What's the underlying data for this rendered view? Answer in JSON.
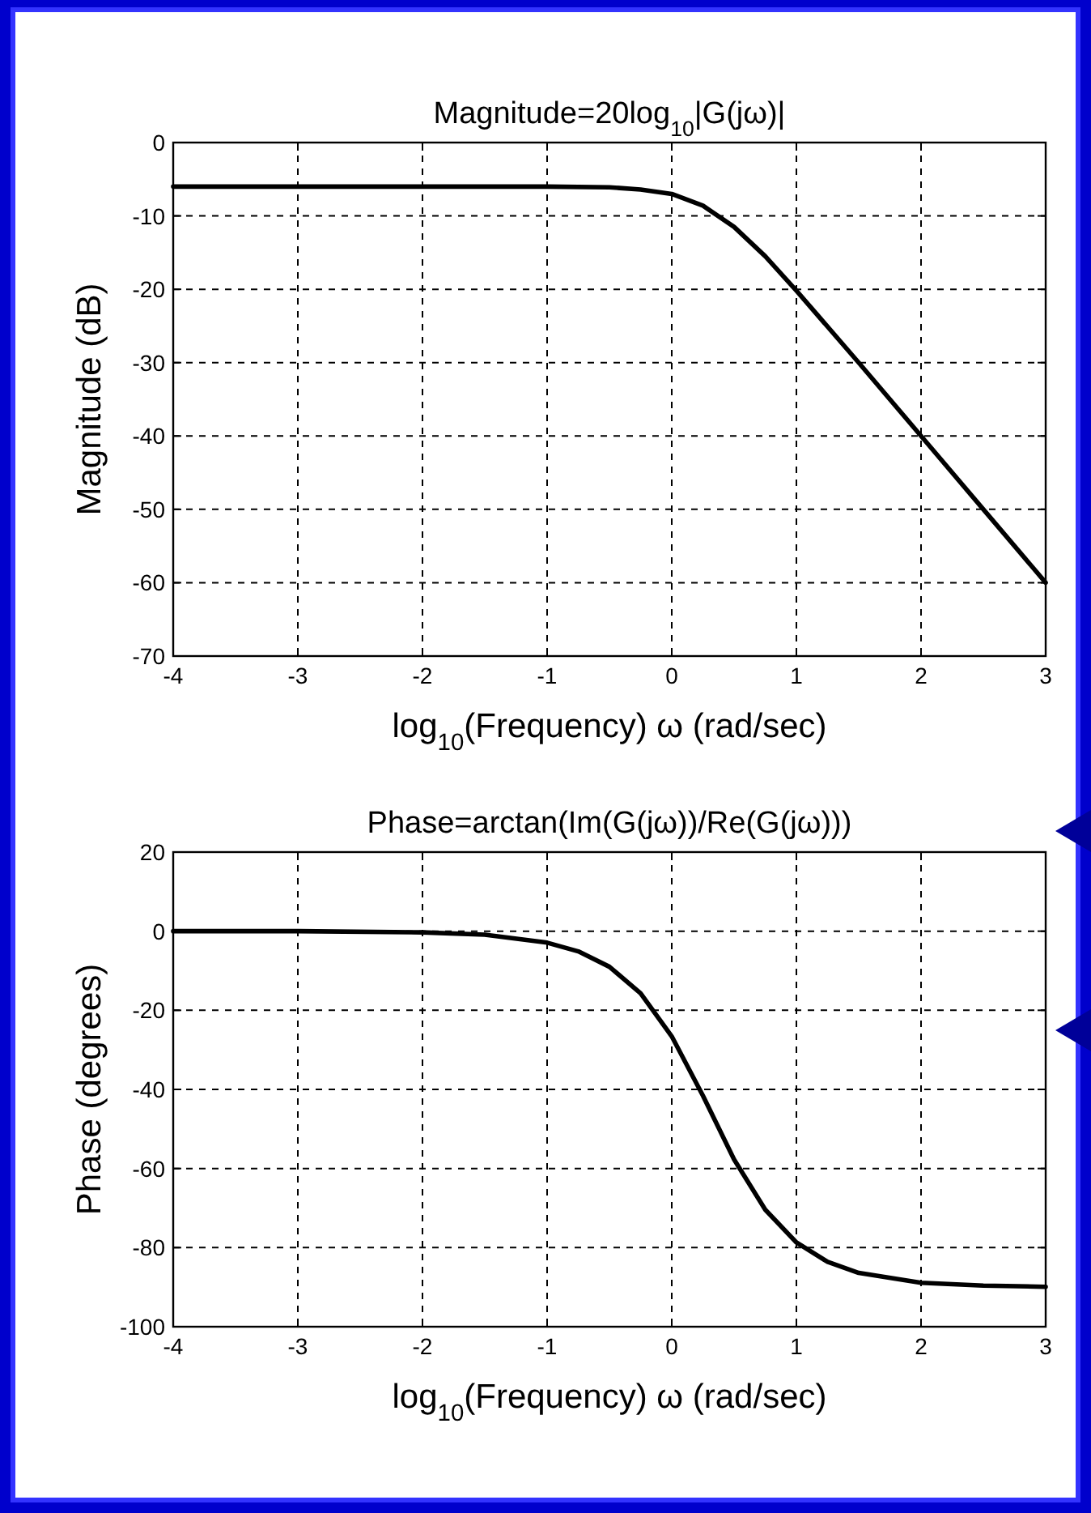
{
  "chart_data": [
    {
      "type": "line",
      "title": "Magnitude=20log$_{10}$|G(jω)|",
      "xlabel": "log$_{10}$(Frequency) ω (rad/sec)",
      "ylabel": "Magnitude (dB)",
      "x": [
        -4,
        -3,
        -2,
        -1.5,
        -1,
        -0.5,
        -0.25,
        0,
        0.25,
        0.5,
        0.75,
        1,
        1.5,
        2,
        2.5,
        3
      ],
      "series": [
        {
          "color": "#000000",
          "values": [
            -6.0,
            -6.0,
            -6.0,
            -6.0,
            -6.0,
            -6.1,
            -6.4,
            -7.0,
            -8.6,
            -11.5,
            -15.5,
            -20.2,
            -30.0,
            -40.0,
            -50.0,
            -60.0
          ]
        }
      ],
      "xlim": [
        -4,
        3
      ],
      "ylim": [
        -70,
        0
      ],
      "xticks": [
        -4,
        -3,
        -2,
        -1,
        0,
        1,
        2,
        3
      ],
      "yticks": [
        -70,
        -60,
        -50,
        -40,
        -30,
        -20,
        -10,
        0
      ],
      "grid": true
    },
    {
      "type": "line",
      "title": "Phase=arctan(Im(G(jω))/Re(G(jω)))",
      "xlabel": "log$_{10}$(Frequency) ω (rad/sec)",
      "ylabel": "Phase (degrees)",
      "x": [
        -4,
        -3,
        -2,
        -1.5,
        -1,
        -0.75,
        -0.5,
        -0.25,
        0,
        0.25,
        0.5,
        0.75,
        1,
        1.25,
        1.5,
        2,
        2.5,
        3
      ],
      "series": [
        {
          "color": "#000000",
          "values": [
            0,
            0,
            -0.3,
            -0.9,
            -2.9,
            -5.1,
            -9.0,
            -15.7,
            -26.6,
            -41.6,
            -57.7,
            -70.4,
            -78.7,
            -83.6,
            -86.4,
            -88.9,
            -89.6,
            -89.9
          ]
        }
      ],
      "xlim": [
        -4,
        3
      ],
      "ylim": [
        -100,
        20
      ],
      "xticks": [
        -4,
        -3,
        -2,
        -1,
        0,
        1,
        2,
        3
      ],
      "yticks": [
        -100,
        -80,
        -60,
        -40,
        -20,
        0,
        20
      ],
      "grid": true
    }
  ]
}
